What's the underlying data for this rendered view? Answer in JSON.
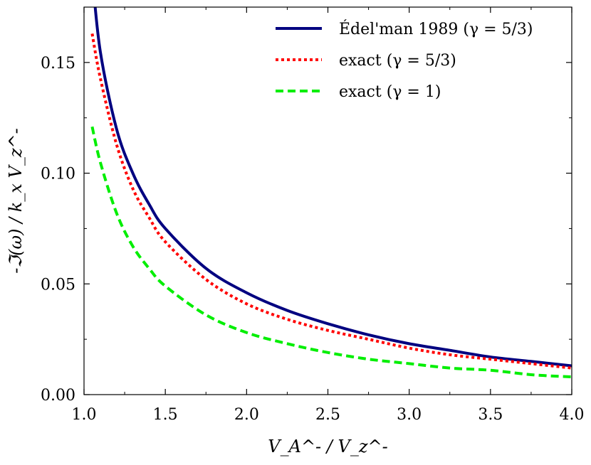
{
  "chart_data": {
    "type": "line",
    "title": "",
    "xlabel": "V_A^- / V_z^-",
    "ylabel": "-ℑ(ω) / k_x V_z^-",
    "xlim": [
      1.0,
      4.0
    ],
    "ylim": [
      0.0,
      0.175
    ],
    "xticks": [
      "1.0",
      "1.5",
      "2.0",
      "2.5",
      "3.0",
      "3.5",
      "4.0"
    ],
    "yticks": [
      "0.00",
      "0.05",
      "0.10",
      "0.15"
    ],
    "grid": false,
    "legend_position": "top-right",
    "x": [
      1.05,
      1.1,
      1.2,
      1.3,
      1.4,
      1.5,
      1.75,
      2.0,
      2.25,
      2.5,
      2.75,
      3.0,
      3.25,
      3.5,
      3.75,
      4.0
    ],
    "series": [
      {
        "name": "Édel'man 1989 (γ = 5/3)",
        "color": "#000080",
        "style": "solid",
        "values": [
          0.19,
          0.155,
          0.12,
          0.1,
          0.086,
          0.075,
          0.057,
          0.046,
          0.038,
          0.032,
          0.027,
          0.023,
          0.02,
          0.017,
          0.015,
          0.013
        ]
      },
      {
        "name": "exact (γ = 5/3)",
        "color": "#ff0000",
        "style": "dotted",
        "values": [
          0.163,
          0.143,
          0.113,
          0.093,
          0.08,
          0.069,
          0.052,
          0.041,
          0.034,
          0.029,
          0.025,
          0.021,
          0.018,
          0.016,
          0.014,
          0.012
        ]
      },
      {
        "name": "exact (γ = 1)",
        "color": "#00ee00",
        "style": "dashed",
        "values": [
          0.121,
          0.105,
          0.082,
          0.067,
          0.057,
          0.049,
          0.036,
          0.028,
          0.023,
          0.019,
          0.016,
          0.014,
          0.012,
          0.011,
          0.009,
          0.008
        ]
      }
    ]
  }
}
